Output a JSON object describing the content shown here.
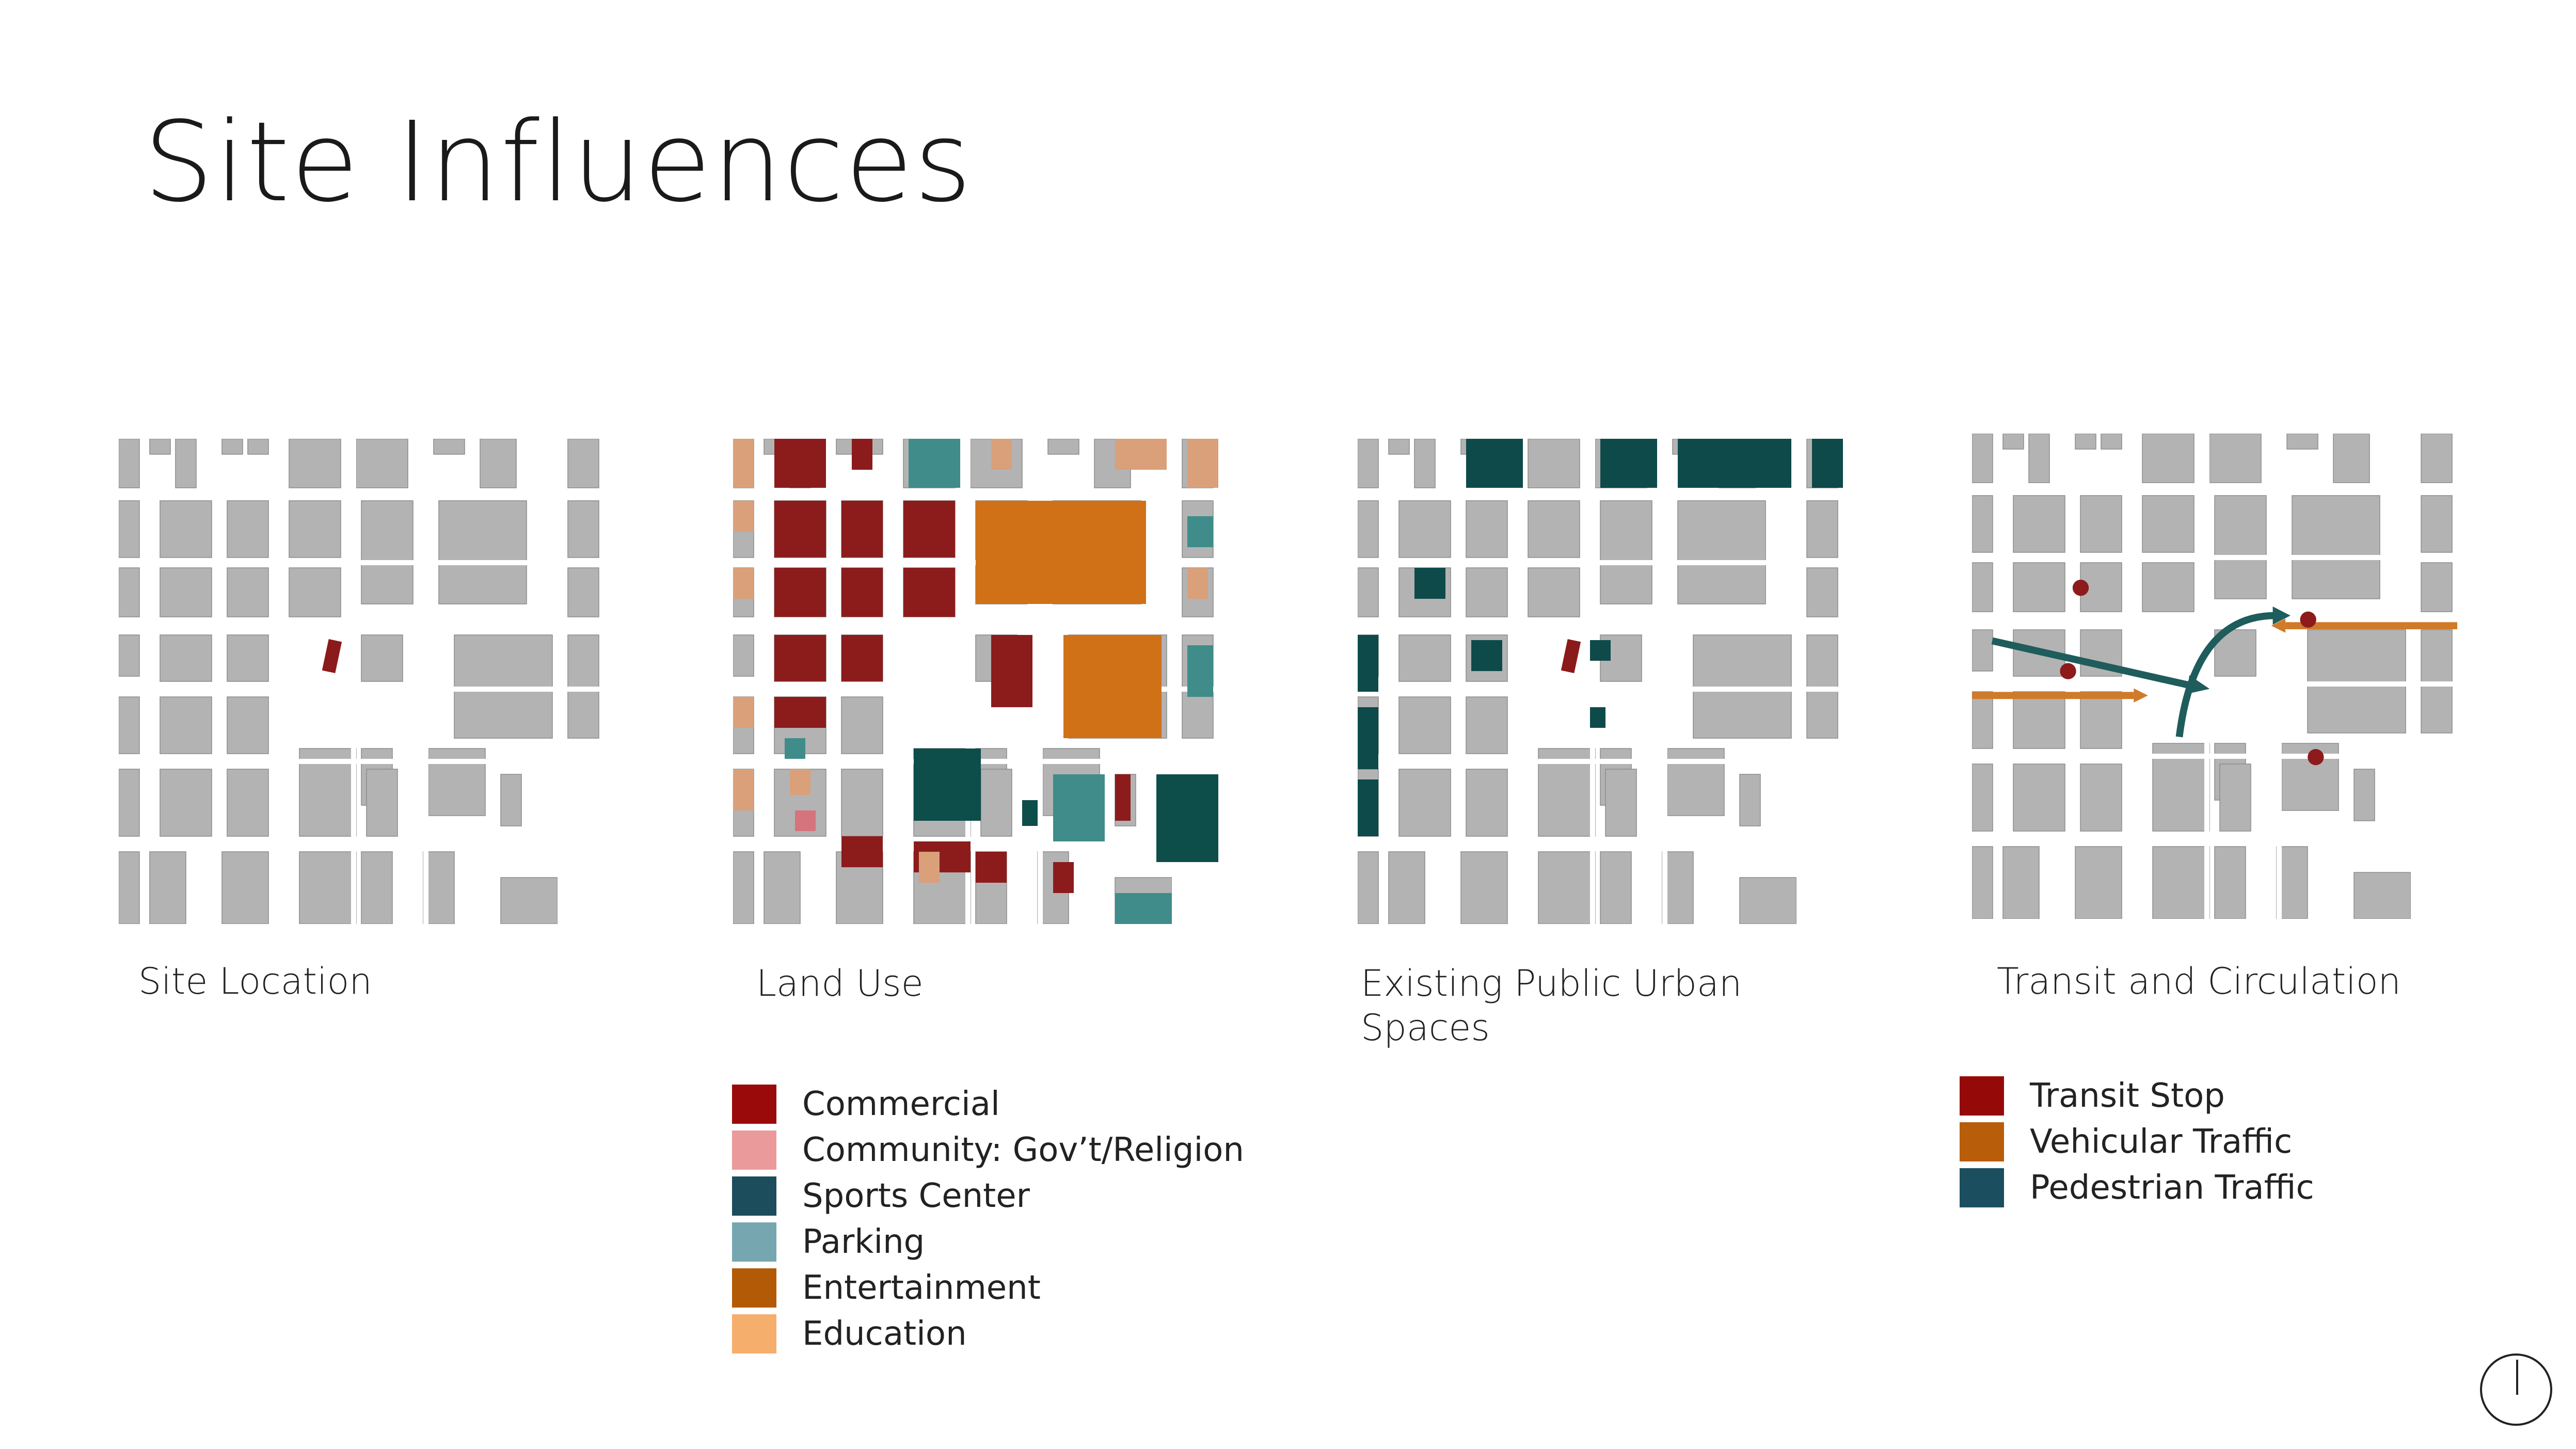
{
  "page": {
    "title": "Site Influences"
  },
  "panels": [
    {
      "id": "site-location",
      "caption": "Site Location"
    },
    {
      "id": "land-use",
      "caption": "Land Use"
    },
    {
      "id": "public-spaces",
      "caption": "Existing Public Urban\nSpaces"
    },
    {
      "id": "transit",
      "caption": "Transit and Circulation"
    }
  ],
  "land_use_legend": [
    {
      "label": "Commercial",
      "color": "#9b0a0a"
    },
    {
      "label": "Community: Gov’t/Religion",
      "color": "#ea9a9a"
    },
    {
      "label": "Sports Center",
      "color": "#1c4d5c"
    },
    {
      "label": "Parking",
      "color": "#76a7b0"
    },
    {
      "label": "Entertainment",
      "color": "#b35a07"
    },
    {
      "label": "Education",
      "color": "#f6ae6c"
    }
  ],
  "transit_legend": [
    {
      "label": "Transit Stop",
      "color": "#960909"
    },
    {
      "label": "Vehicular Traffic",
      "color": "#b85d0a"
    },
    {
      "label": "Pedestrian Traffic",
      "color": "#1b4e5e"
    }
  ],
  "colors": {
    "building": "#b3b3b3",
    "building_stroke": "#8c8c8c",
    "street": "#ffffff",
    "site": "#8b1a1a",
    "commercial": "#8c1c1c",
    "community": "#d5747c",
    "sports": "#0d4d4a",
    "parking": "#3f8c8a",
    "entertainment": "#d07118",
    "education": "#d9a07a",
    "public_space": "#0e4a4a",
    "transit_stop": "#8d1b1b",
    "vehicular": "#d07a2a",
    "pedestrian": "#1f5c5c"
  },
  "north_arrow": {
    "icon": "north-arrow-icon"
  }
}
